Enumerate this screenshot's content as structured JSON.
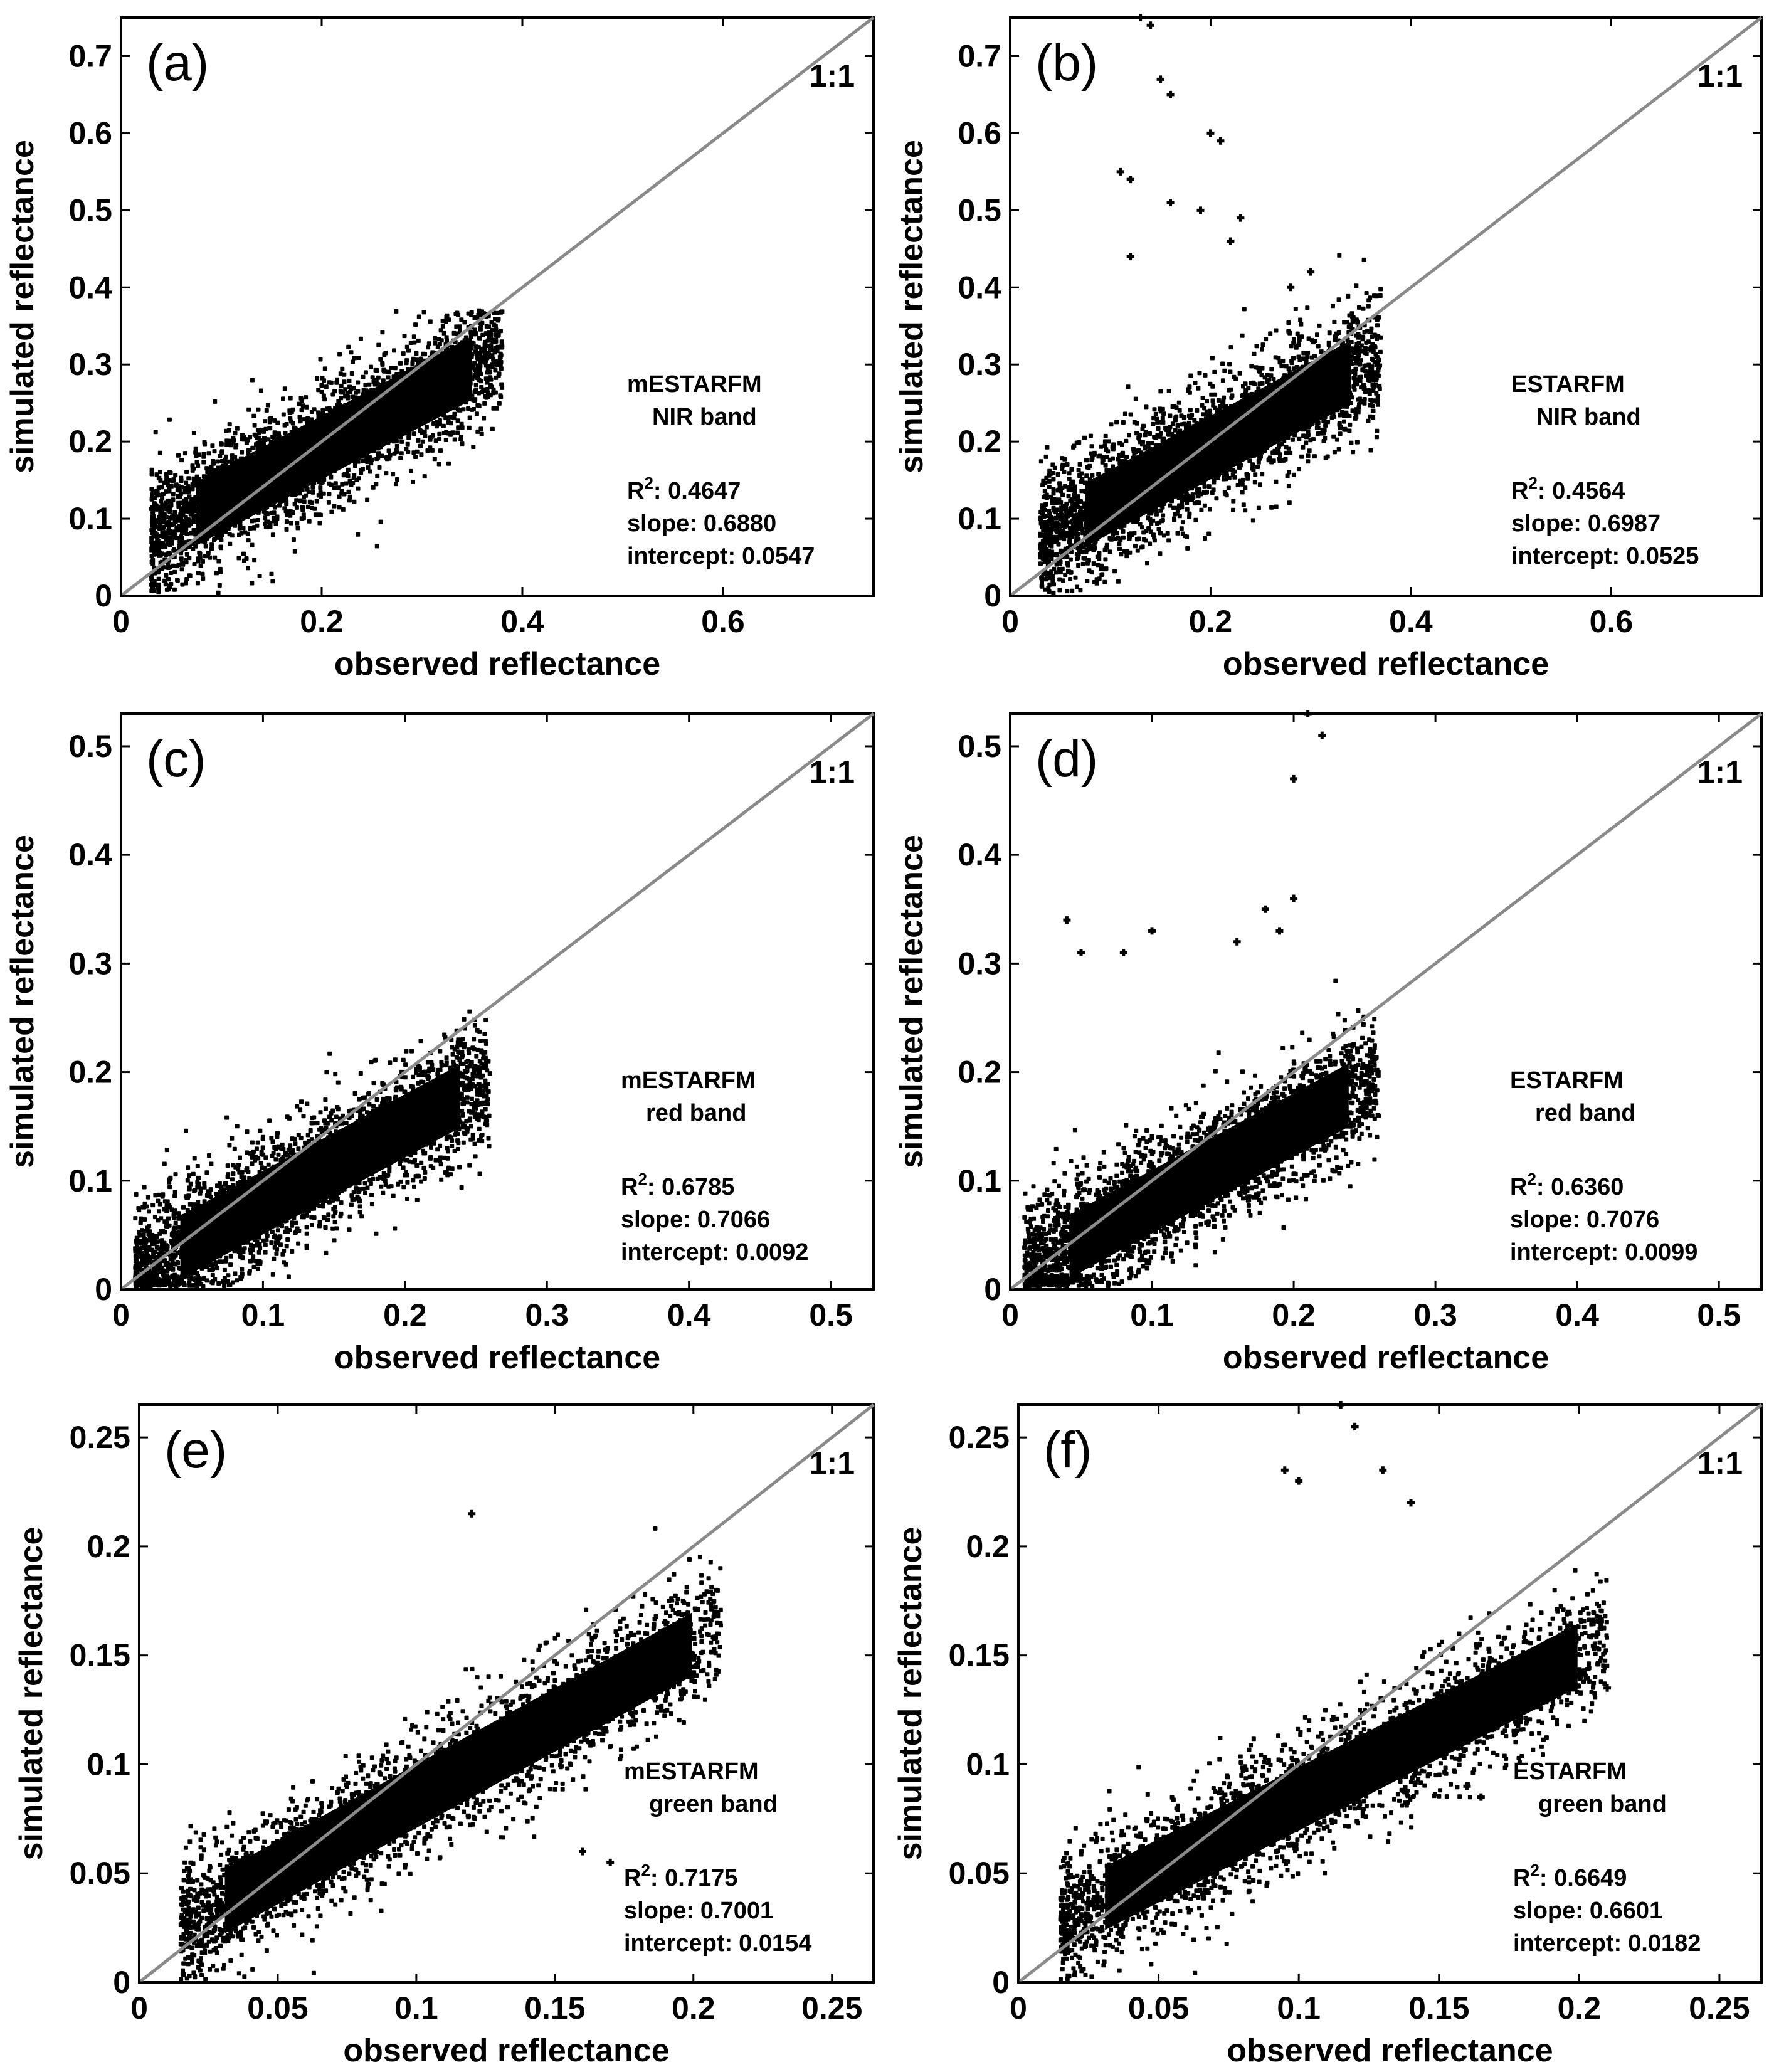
{
  "chart_data": [
    {
      "type": "scatter",
      "panel": "(a)",
      "title": "",
      "xlabel": "observed reflectance",
      "ylabel": "simulated reflectance",
      "xlim": [
        0,
        0.75
      ],
      "ylim": [
        0,
        0.75
      ],
      "xticks": [
        "0",
        "0.2",
        "0.4",
        "0.6"
      ],
      "yticks": [
        "0",
        "0.1",
        "0.2",
        "0.3",
        "0.4",
        "0.5",
        "0.6",
        "0.7"
      ],
      "reference_line": "1:1",
      "method": "mESTARFM",
      "band": "NIR band",
      "r2_label": "R",
      "r2_sup": "2",
      "r2": "0.4647",
      "slope_label": "slope:",
      "slope": "0.6880",
      "intercept_label": "intercept:",
      "intercept": "0.0547",
      "point_cloud": {
        "x_range": [
          0.03,
          0.38
        ],
        "fit_slope": 0.688,
        "fit_intercept": 0.0547,
        "y_max": 0.37,
        "outliers": []
      }
    },
    {
      "type": "scatter",
      "panel": "(b)",
      "title": "",
      "xlabel": "observed reflectance",
      "ylabel": "simulated reflectance",
      "xlim": [
        0,
        0.75
      ],
      "ylim": [
        0,
        0.75
      ],
      "xticks": [
        "0",
        "0.2",
        "0.4",
        "0.6"
      ],
      "yticks": [
        "0",
        "0.1",
        "0.2",
        "0.3",
        "0.4",
        "0.5",
        "0.6",
        "0.7"
      ],
      "reference_line": "1:1",
      "method": "ESTARFM",
      "band": "NIR band",
      "r2_label": "R",
      "r2_sup": "2",
      "r2": "0.4564",
      "slope_label": "slope:",
      "slope": "0.6987",
      "intercept_label": "intercept:",
      "intercept": "0.0525",
      "point_cloud": {
        "x_range": [
          0.03,
          0.37
        ],
        "fit_slope": 0.6987,
        "fit_intercept": 0.0525,
        "y_max": 0.45,
        "outliers": [
          [
            0.13,
            0.75
          ],
          [
            0.14,
            0.74
          ],
          [
            0.15,
            0.67
          ],
          [
            0.16,
            0.65
          ],
          [
            0.2,
            0.6
          ],
          [
            0.21,
            0.59
          ],
          [
            0.11,
            0.55
          ],
          [
            0.12,
            0.54
          ],
          [
            0.16,
            0.51
          ],
          [
            0.19,
            0.5
          ],
          [
            0.23,
            0.49
          ],
          [
            0.22,
            0.46
          ],
          [
            0.3,
            0.42
          ],
          [
            0.28,
            0.4
          ],
          [
            0.12,
            0.44
          ]
        ]
      }
    },
    {
      "type": "scatter",
      "panel": "(c)",
      "title": "",
      "xlabel": "observed reflectance",
      "ylabel": "simulated reflectance",
      "xlim": [
        0,
        0.53
      ],
      "ylim": [
        0,
        0.53
      ],
      "xticks": [
        "0",
        "0.1",
        "0.2",
        "0.3",
        "0.4",
        "0.5"
      ],
      "yticks": [
        "0",
        "0.1",
        "0.2",
        "0.3",
        "0.4",
        "0.5"
      ],
      "reference_line": "1:1",
      "method": "mESTARFM",
      "band": "red band",
      "r2_label": "R",
      "r2_sup": "2",
      "r2": "0.6785",
      "slope_label": "slope:",
      "slope": "0.7066",
      "intercept_label": "intercept:",
      "intercept": "0.0092",
      "point_cloud": {
        "x_range": [
          0.01,
          0.26
        ],
        "fit_slope": 0.7066,
        "fit_intercept": 0.0092,
        "y_max": 0.26,
        "outliers": []
      }
    },
    {
      "type": "scatter",
      "panel": "(d)",
      "title": "",
      "xlabel": "observed reflectance",
      "ylabel": "simulated reflectance",
      "xlim": [
        0,
        0.53
      ],
      "ylim": [
        0,
        0.53
      ],
      "xticks": [
        "0",
        "0.1",
        "0.2",
        "0.3",
        "0.4",
        "0.5"
      ],
      "yticks": [
        "0",
        "0.1",
        "0.2",
        "0.3",
        "0.4",
        "0.5"
      ],
      "reference_line": "1:1",
      "method": "ESTARFM",
      "band": "red band",
      "r2_label": "R",
      "r2_sup": "2",
      "r2": "0.6360",
      "slope_label": "slope:",
      "slope": "0.7076",
      "intercept_label": "intercept:",
      "intercept": "0.0099",
      "point_cloud": {
        "x_range": [
          0.01,
          0.26
        ],
        "fit_slope": 0.7076,
        "fit_intercept": 0.0099,
        "y_max": 0.29,
        "outliers": [
          [
            0.21,
            0.53
          ],
          [
            0.22,
            0.51
          ],
          [
            0.2,
            0.47
          ],
          [
            0.2,
            0.36
          ],
          [
            0.04,
            0.34
          ],
          [
            0.18,
            0.35
          ],
          [
            0.19,
            0.33
          ],
          [
            0.1,
            0.33
          ],
          [
            0.05,
            0.31
          ],
          [
            0.08,
            0.31
          ],
          [
            0.16,
            0.32
          ]
        ]
      }
    },
    {
      "type": "scatter",
      "panel": "(e)",
      "title": "",
      "xlabel": "observed reflectance",
      "ylabel": "simulated reflectance",
      "xlim": [
        0,
        0.265
      ],
      "ylim": [
        0,
        0.265
      ],
      "xticks": [
        "0",
        "0.05",
        "0.1",
        "0.15",
        "0.2",
        "0.25"
      ],
      "yticks": [
        "0",
        "0.05",
        "0.1",
        "0.15",
        "0.2",
        "0.25"
      ],
      "reference_line": "1:1",
      "method": "mESTARFM",
      "band": "green band",
      "r2_label": "R",
      "r2_sup": "2",
      "r2": "0.7175",
      "slope_label": "slope:",
      "slope": "0.7001",
      "intercept_label": "intercept:",
      "intercept": "0.0154",
      "point_cloud": {
        "x_range": [
          0.015,
          0.21
        ],
        "fit_slope": 0.7001,
        "fit_intercept": 0.0154,
        "y_max": 0.215,
        "outliers": [
          [
            0.12,
            0.215
          ],
          [
            0.16,
            0.06
          ],
          [
            0.17,
            0.055
          ],
          [
            0.2,
            0.15
          ],
          [
            0.19,
            0.165
          ]
        ]
      }
    },
    {
      "type": "scatter",
      "panel": "(f)",
      "title": "",
      "xlabel": "observed reflectance",
      "ylabel": "simulated reflectance",
      "xlim": [
        0,
        0.265
      ],
      "ylim": [
        0,
        0.265
      ],
      "xticks": [
        "0",
        "0.05",
        "0.1",
        "0.15",
        "0.2",
        "0.25"
      ],
      "yticks": [
        "0",
        "0.05",
        "0.1",
        "0.15",
        "0.2",
        "0.25"
      ],
      "reference_line": "1:1",
      "method": "ESTARFM",
      "band": "green band",
      "r2_label": "R",
      "r2_sup": "2",
      "r2": "0.6649",
      "slope_label": "slope:",
      "slope": "0.6601",
      "intercept_label": "intercept:",
      "intercept": "0.0182",
      "point_cloud": {
        "x_range": [
          0.015,
          0.21
        ],
        "fit_slope": 0.6601,
        "fit_intercept": 0.0182,
        "y_max": 0.22,
        "outliers": [
          [
            0.115,
            0.265
          ],
          [
            0.12,
            0.255
          ],
          [
            0.095,
            0.235
          ],
          [
            0.1,
            0.23
          ],
          [
            0.13,
            0.235
          ],
          [
            0.14,
            0.22
          ],
          [
            0.2,
            0.14
          ],
          [
            0.21,
            0.135
          ],
          [
            0.16,
            0.09
          ],
          [
            0.165,
            0.085
          ]
        ]
      }
    }
  ]
}
